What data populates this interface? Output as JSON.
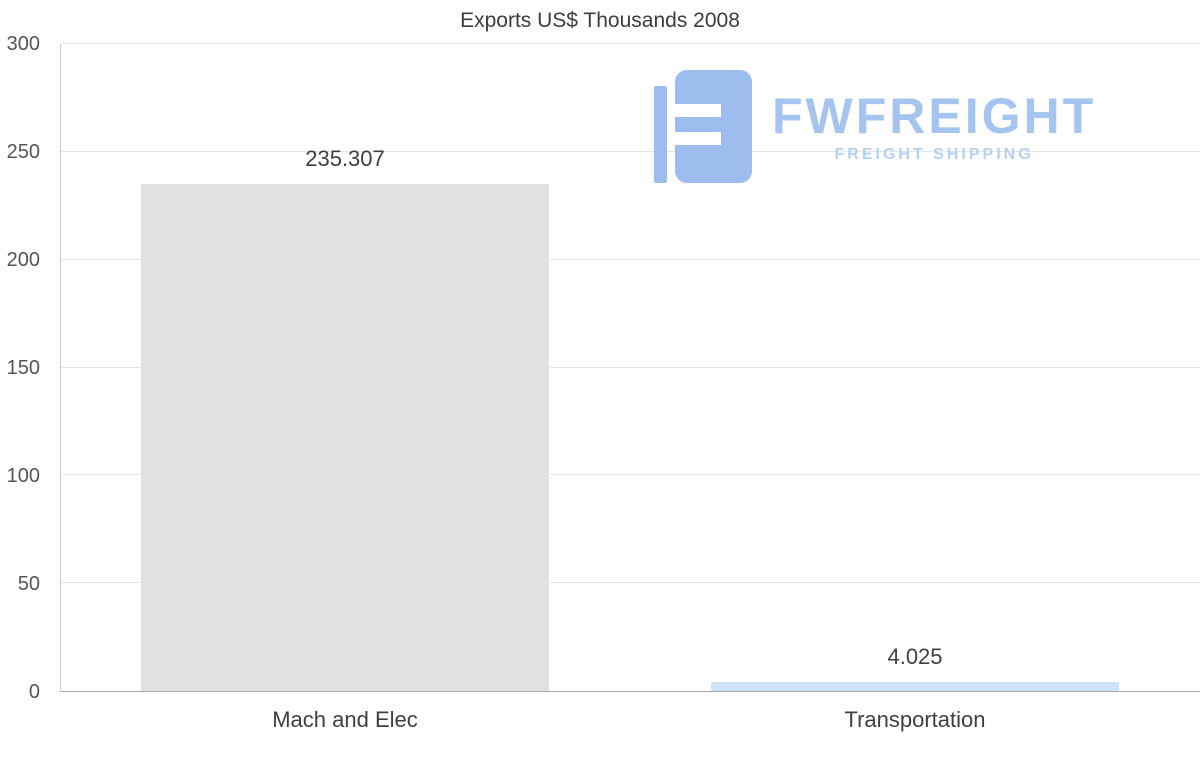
{
  "chart_data": {
    "type": "bar",
    "title": "Exports US$ Thousands 2008",
    "categories": [
      "Mach and Elec",
      "Transportation"
    ],
    "values": [
      235.307,
      4.025
    ],
    "value_labels": [
      "235.307",
      "4.025"
    ],
    "bar_colors": [
      "#e2e2e2",
      "#cfe3f8"
    ],
    "ylim": [
      0,
      300
    ],
    "yticks": [
      0,
      50,
      100,
      150,
      200,
      250,
      300
    ],
    "grid": true,
    "legend": "none",
    "xlabel": "",
    "ylabel": ""
  },
  "watermark": {
    "brand": "FWFREIGHT",
    "tagline": "FREIGHT SHIPPING",
    "brand_color": "#a5c4ef",
    "tagline_color": "#b4d0f3",
    "icon_color": "#9dbdee"
  }
}
